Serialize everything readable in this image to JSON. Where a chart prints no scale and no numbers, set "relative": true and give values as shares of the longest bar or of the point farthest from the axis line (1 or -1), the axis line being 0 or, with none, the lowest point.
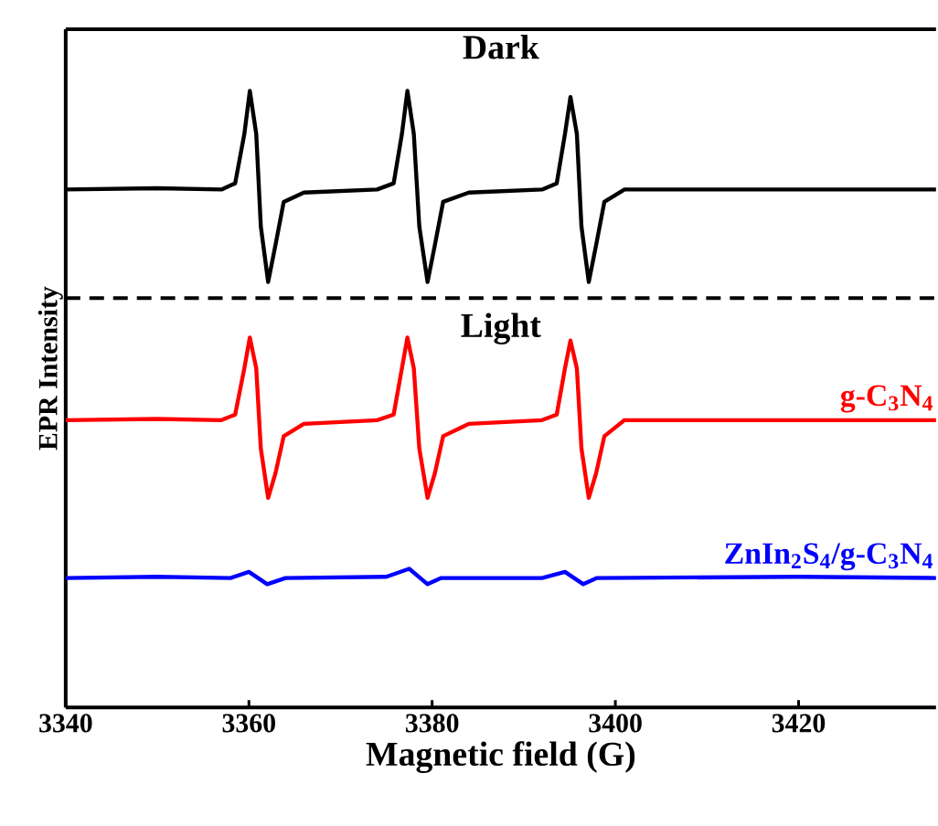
{
  "chart_data": {
    "type": "line",
    "relative": true,
    "xlabel": "Magnetic field (G)",
    "ylabel": "EPR Intensity",
    "annotations": [
      "Dark",
      "Light"
    ],
    "xlim": [
      3340,
      3435
    ],
    "xticks": [
      3340,
      3360,
      3380,
      3400,
      3420
    ],
    "tick_labels": "x",
    "grid": false,
    "line_style": "solid",
    "ref_lines": [
      {
        "axis": "y",
        "value": 0.664,
        "color": "#000000",
        "line_style": "dashed"
      }
    ],
    "series": [
      {
        "color": "#000000",
        "x": [
          3340,
          3350,
          3357,
          3358.5,
          3359.5,
          3360.1,
          3360.8,
          3361.3,
          3362.1,
          3362.9,
          3363.8,
          3366,
          3374,
          3375.8,
          3376.7,
          3377.3,
          3378,
          3378.6,
          3379.5,
          3380.3,
          3381.2,
          3384,
          3392,
          3393.6,
          3394.5,
          3395.1,
          3395.8,
          3396.3,
          3397.1,
          3397.9,
          3398.8,
          3401,
          3420,
          3435
        ],
        "values": [
          0.84,
          0.842,
          0.84,
          0.85,
          0.93,
          1.0,
          0.93,
          0.78,
          0.69,
          0.75,
          0.82,
          0.835,
          0.84,
          0.85,
          0.93,
          1.0,
          0.93,
          0.78,
          0.69,
          0.75,
          0.82,
          0.835,
          0.84,
          0.85,
          0.93,
          0.99,
          0.93,
          0.78,
          0.69,
          0.75,
          0.82,
          0.84,
          0.84,
          0.84
        ]
      },
      {
        "name": "g-C$_{3}$N$_{4}$",
        "color": "#ff0000",
        "x": [
          3340,
          3350,
          3357,
          3358.5,
          3359.5,
          3360.1,
          3360.8,
          3361.3,
          3362.1,
          3362.9,
          3363.8,
          3366,
          3374,
          3375.8,
          3376.7,
          3377.3,
          3378,
          3378.6,
          3379.5,
          3380.3,
          3381.2,
          3384,
          3392,
          3393.6,
          3394.5,
          3395.1,
          3395.8,
          3396.3,
          3397.1,
          3397.9,
          3398.8,
          3401,
          3420,
          3435
        ],
        "values": [
          0.466,
          0.468,
          0.466,
          0.475,
          0.55,
          0.6,
          0.55,
          0.42,
          0.34,
          0.38,
          0.44,
          0.46,
          0.466,
          0.475,
          0.55,
          0.6,
          0.55,
          0.42,
          0.34,
          0.38,
          0.44,
          0.46,
          0.466,
          0.475,
          0.55,
          0.595,
          0.55,
          0.42,
          0.34,
          0.38,
          0.44,
          0.466,
          0.466,
          0.466
        ]
      },
      {
        "name": "ZnIn$_{2}$S$_{4}$/g-C$_{3}$N$_{4}$",
        "color": "#0000ff",
        "x": [
          3340,
          3350,
          3358,
          3360,
          3362,
          3364,
          3375,
          3377.5,
          3379.5,
          3381,
          3392,
          3394.5,
          3396.5,
          3398,
          3420,
          3435
        ],
        "values": [
          0.21,
          0.212,
          0.21,
          0.22,
          0.2,
          0.21,
          0.212,
          0.225,
          0.2,
          0.21,
          0.21,
          0.22,
          0.2,
          0.21,
          0.212,
          0.21
        ]
      }
    ]
  }
}
